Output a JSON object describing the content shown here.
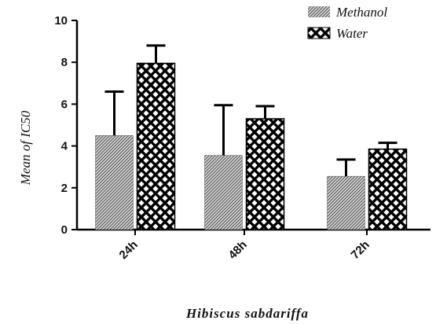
{
  "chart_data": {
    "type": "bar",
    "title": "",
    "xlabel": "Hibiscus sabdariffa",
    "ylabel": "Mean of IC50",
    "categories": [
      "24h",
      "48h",
      "72h"
    ],
    "ylim": [
      0,
      10
    ],
    "yticks": [
      0,
      2,
      4,
      6,
      8,
      10
    ],
    "legend_position": "top-right",
    "grid": false,
    "series": [
      {
        "name": "Methanol",
        "values": [
          4.5,
          3.55,
          2.55
        ],
        "error": [
          2.1,
          2.4,
          0.8
        ],
        "pattern": "fine-hatch"
      },
      {
        "name": "Water",
        "values": [
          7.95,
          5.3,
          3.85
        ],
        "error": [
          0.85,
          0.6,
          0.3
        ],
        "pattern": "crosshatch"
      }
    ]
  }
}
